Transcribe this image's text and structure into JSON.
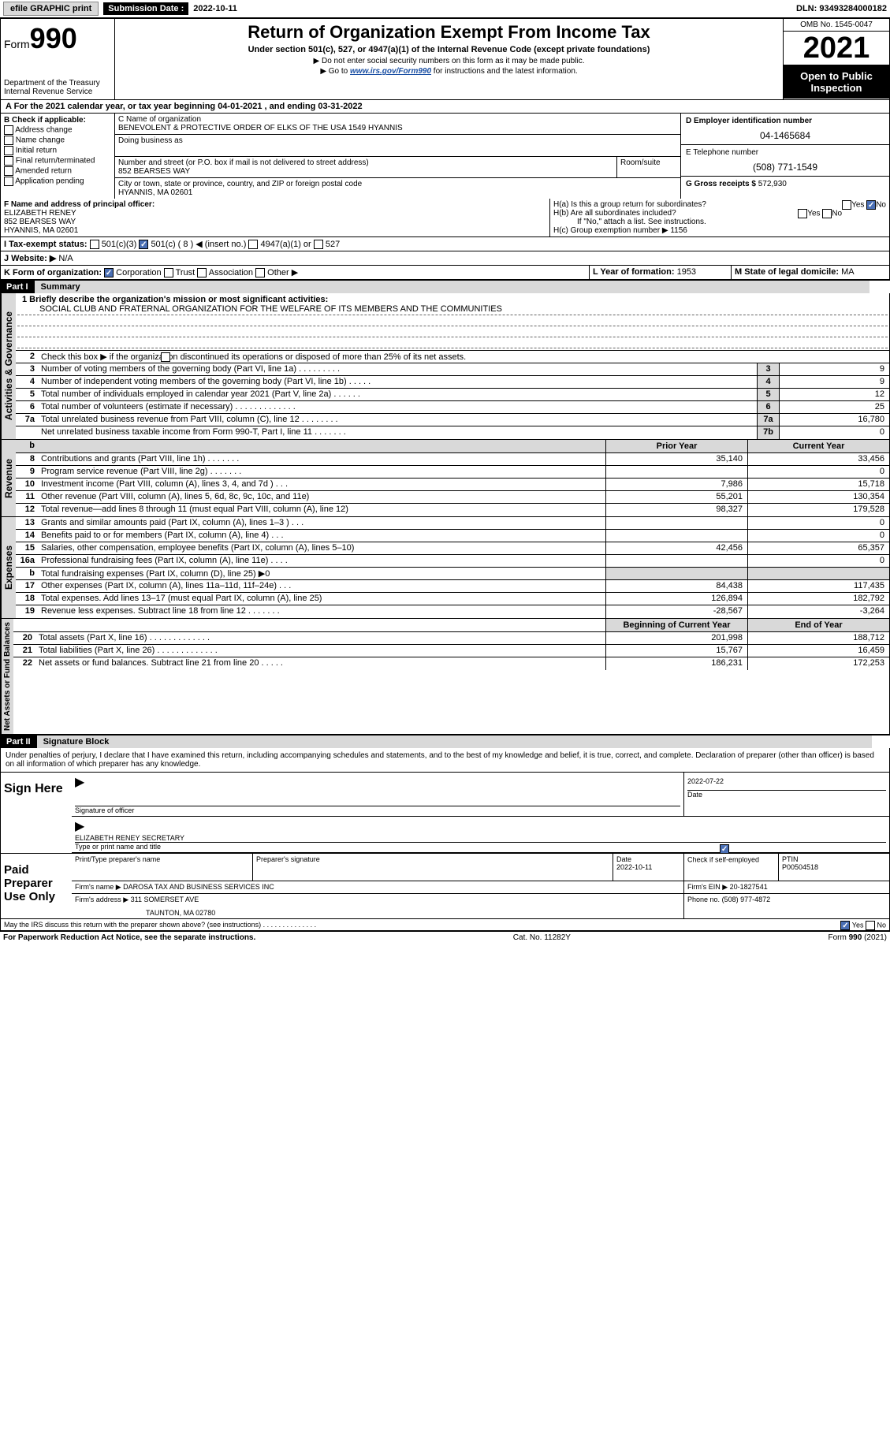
{
  "topbar": {
    "efile": "efile GRAPHIC print",
    "submission_label": "Submission Date :",
    "submission_date": "2022-10-11",
    "dln": "DLN: 93493284000182"
  },
  "header": {
    "form_prefix": "Form",
    "form_num": "990",
    "dept": "Department of the Treasury",
    "irs": "Internal Revenue Service",
    "title": "Return of Organization Exempt From Income Tax",
    "sub": "Under section 501(c), 527, or 4947(a)(1) of the Internal Revenue Code (except private foundations)",
    "note1": "▶ Do not enter social security numbers on this form as it may be made public.",
    "note2a": "▶ Go to ",
    "note2_link": "www.irs.gov/Form990",
    "note2b": " for instructions and the latest information.",
    "omb": "OMB No. 1545-0047",
    "year": "2021",
    "open": "Open to Public Inspection"
  },
  "taxyear": "A For the 2021 calendar year, or tax year beginning 04-01-2021    , and ending 03-31-2022",
  "checkB": {
    "label": "B Check if applicable:",
    "items": [
      "Address change",
      "Name change",
      "Initial return",
      "Final return/terminated",
      "Amended return",
      "Application pending"
    ]
  },
  "C": {
    "name_label": "C Name of organization",
    "name": "BENEVOLENT & PROTECTIVE ORDER OF ELKS OF THE USA 1549 HYANNIS",
    "dba_label": "Doing business as",
    "street_label": "Number and street (or P.O. box if mail is not delivered to street address)",
    "room_label": "Room/suite",
    "street": "852 BEARSES WAY",
    "city_label": "City or town, state or province, country, and ZIP or foreign postal code",
    "city": "HYANNIS, MA  02601"
  },
  "D": {
    "label": "D Employer identification number",
    "val": "04-1465684"
  },
  "E": {
    "label": "E Telephone number",
    "val": "(508) 771-1549"
  },
  "G": {
    "label": "G Gross receipts $",
    "val": "572,930"
  },
  "F": {
    "label": "F Name and address of principal officer:",
    "name": "ELIZABETH RENEY",
    "street": "852 BEARSES WAY",
    "city": "HYANNIS, MA  02601"
  },
  "H": {
    "a": "H(a)  Is this a group return for subordinates?",
    "b": "H(b)  Are all subordinates included?",
    "b_note": "If \"No,\" attach a list. See instructions.",
    "c": "H(c)  Group exemption number ▶",
    "c_val": "1156",
    "yes": "Yes",
    "no": "No"
  },
  "I": {
    "label": "I   Tax-exempt status:",
    "501c3": "501(c)(3)",
    "501c": "501(c) ( 8 ) ◀ (insert no.)",
    "4947": "4947(a)(1) or",
    "527": "527"
  },
  "J": {
    "label": "J   Website: ▶",
    "val": "N/A"
  },
  "K": {
    "label": "K Form of organization:",
    "corp": "Corporation",
    "trust": "Trust",
    "assoc": "Association",
    "other": "Other ▶"
  },
  "L": {
    "label": "L Year of formation:",
    "val": "1953"
  },
  "M": {
    "label": "M State of legal domicile:",
    "val": "MA"
  },
  "part1": {
    "hdr": "Part I",
    "title": "Summary",
    "mission_label": "1  Briefly describe the organization's mission or most significant activities:",
    "mission": "SOCIAL CLUB AND FRATERNAL ORGANIZATION FOR THE WELFARE OF ITS MEMBERS AND THE COMMUNITIES",
    "line2": "Check this box ▶        if the organization discontinued its operations or disposed of more than 25% of its net assets.",
    "lines_gov": [
      {
        "n": "3",
        "t": "Number of voting members of the governing body (Part VI, line 1a)   .    .    .    .    .    .    .    .    .",
        "box": "3",
        "v": "9"
      },
      {
        "n": "4",
        "t": "Number of independent voting members of the governing body (Part VI, line 1b)   .    .    .    .    .",
        "box": "4",
        "v": "9"
      },
      {
        "n": "5",
        "t": "Total number of individuals employed in calendar year 2021 (Part V, line 2a)   .    .    .    .    .    .",
        "box": "5",
        "v": "12"
      },
      {
        "n": "6",
        "t": "Total number of volunteers (estimate if necessary)   .    .    .    .    .    .    .    .    .    .    .    .    .",
        "box": "6",
        "v": "25"
      },
      {
        "n": "7a",
        "t": "Total unrelated business revenue from Part VIII, column (C), line 12   .    .    .    .    .    .    .    .",
        "box": "7a",
        "v": "16,780"
      },
      {
        "n": "",
        "t": "Net unrelated business taxable income from Form 990-T, Part I, line 11   .    .    .    .    .    .    .",
        "box": "7b",
        "v": "0"
      }
    ],
    "prior_hdr": "Prior Year",
    "cur_hdr": "Current Year",
    "lines_rev": [
      {
        "n": "8",
        "t": "Contributions and grants (Part VIII, line 1h)   .    .    .    .    .    .    .",
        "p": "35,140",
        "c": "33,456"
      },
      {
        "n": "9",
        "t": "Program service revenue (Part VIII, line 2g)   .    .    .    .    .    .    .",
        "p": "",
        "c": "0"
      },
      {
        "n": "10",
        "t": "Investment income (Part VIII, column (A), lines 3, 4, and 7d )   .    .    .",
        "p": "7,986",
        "c": "15,718"
      },
      {
        "n": "11",
        "t": "Other revenue (Part VIII, column (A), lines 5, 6d, 8c, 9c, 10c, and 11e)",
        "p": "55,201",
        "c": "130,354"
      },
      {
        "n": "12",
        "t": "Total revenue—add lines 8 through 11 (must equal Part VIII, column (A), line 12)",
        "p": "98,327",
        "c": "179,528"
      }
    ],
    "lines_exp": [
      {
        "n": "13",
        "t": "Grants and similar amounts paid (Part IX, column (A), lines 1–3 )   .    .    .",
        "p": "",
        "c": "0"
      },
      {
        "n": "14",
        "t": "Benefits paid to or for members (Part IX, column (A), line 4)   .    .    .",
        "p": "",
        "c": "0"
      },
      {
        "n": "15",
        "t": "Salaries, other compensation, employee benefits (Part IX, column (A), lines 5–10)",
        "p": "42,456",
        "c": "65,357"
      },
      {
        "n": "16a",
        "t": "Professional fundraising fees (Part IX, column (A), line 11e)   .    .    .    .",
        "p": "",
        "c": "0"
      },
      {
        "n": "b",
        "t": "Total fundraising expenses (Part IX, column (D), line 25) ▶0",
        "p": "",
        "c": "",
        "grey": true
      },
      {
        "n": "17",
        "t": "Other expenses (Part IX, column (A), lines 11a–11d, 11f–24e)   .    .    .",
        "p": "84,438",
        "c": "117,435"
      },
      {
        "n": "18",
        "t": "Total expenses. Add lines 13–17 (must equal Part IX, column (A), line 25)",
        "p": "126,894",
        "c": "182,792"
      },
      {
        "n": "19",
        "t": "Revenue less expenses. Subtract line 18 from line 12   .    .    .    .    .    .    .",
        "p": "-28,567",
        "c": "-3,264"
      }
    ],
    "beg_hdr": "Beginning of Current Year",
    "end_hdr": "End of Year",
    "lines_net": [
      {
        "n": "20",
        "t": "Total assets (Part X, line 16)   .    .    .    .    .    .    .    .    .    .    .    .    .",
        "p": "201,998",
        "c": "188,712"
      },
      {
        "n": "21",
        "t": "Total liabilities (Part X, line 26)   .    .    .    .    .    .    .    .    .    .    .    .    .",
        "p": "15,767",
        "c": "16,459"
      },
      {
        "n": "22",
        "t": "Net assets or fund balances. Subtract line 21 from line 20   .    .    .    .    .",
        "p": "186,231",
        "c": "172,253"
      }
    ]
  },
  "vlabels": {
    "gov": "Activities & Governance",
    "rev": "Revenue",
    "exp": "Expenses",
    "net": "Net Assets or Fund Balances"
  },
  "part2": {
    "hdr": "Part II",
    "title": "Signature Block",
    "decl": "Under penalties of perjury, I declare that I have examined this return, including accompanying schedules and statements, and to the best of my knowledge and belief, it is true, correct, and complete. Declaration of preparer (other than officer) is based on all information of which preparer has any knowledge."
  },
  "sign": {
    "here": "Sign Here",
    "off_sig": "Signature of officer",
    "date_label": "Date",
    "date": "2022-07-22",
    "name": "ELIZABETH RENEY  SECRETARY",
    "name_label": "Type or print name and title"
  },
  "paid": {
    "label": "Paid Preparer Use Only",
    "prep_name_label": "Print/Type preparer's name",
    "prep_sig_label": "Preparer's signature",
    "date_label": "Date",
    "date": "2022-10-11",
    "check_label": "Check          if self-employed",
    "ptin_label": "PTIN",
    "ptin": "P00504518",
    "firm_name_label": "Firm's name    ▶",
    "firm_name": "DAROSA TAX AND BUSINESS SERVICES INC",
    "firm_ein_label": "Firm's EIN ▶",
    "firm_ein": "20-1827541",
    "firm_addr_label": "Firm's address ▶",
    "firm_addr1": "311 SOMERSET AVE",
    "firm_addr2": "TAUNTON, MA  02780",
    "phone_label": "Phone no.",
    "phone": "(508) 977-4872"
  },
  "irs_discuss": "May the IRS discuss this return with the preparer shown above? (see instructions)   .    .    .    .    .    .    .    .    .    .    .    .    .    .",
  "footer": {
    "paperwork": "For Paperwork Reduction Act Notice, see the separate instructions.",
    "cat": "Cat. No. 11282Y",
    "formno": "Form 990 (2021)"
  }
}
